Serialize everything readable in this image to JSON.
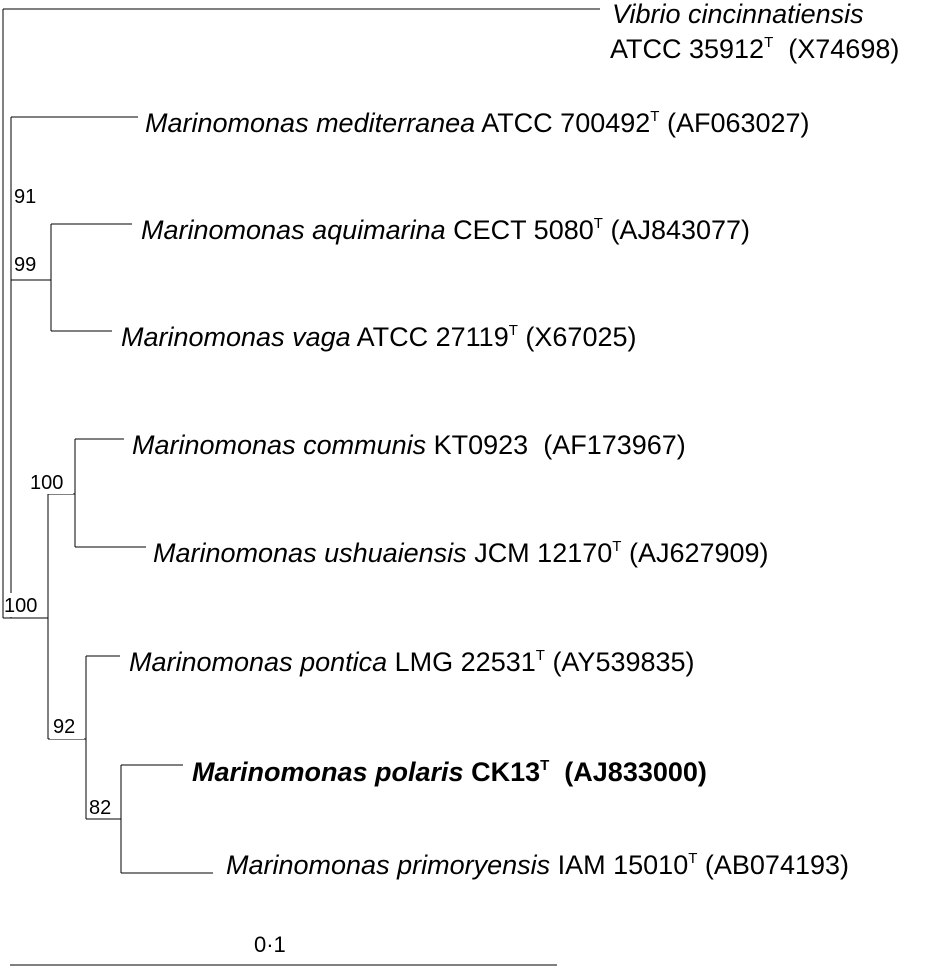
{
  "taxa": [
    {
      "id": "vibrio",
      "species": "Vibrio cincinnatiensis",
      "strain": "ATCC 35912",
      "type_strain": true,
      "accession": "(X74698)"
    },
    {
      "id": "mediterranea",
      "species": "Marinomonas mediterranea",
      "strain": "ATCC 700492",
      "type_strain": true,
      "accession": "(AF063027)"
    },
    {
      "id": "aquimarina",
      "species": "Marinomonas aquimarina",
      "strain": "CECT 5080",
      "type_strain": true,
      "accession": "(AJ843077)"
    },
    {
      "id": "vaga",
      "species": "Marinomonas vaga",
      "strain": "ATCC 27119",
      "type_strain": true,
      "accession": "(X67025)"
    },
    {
      "id": "communis",
      "species": "Marinomonas communis",
      "strain": "KT0923",
      "type_strain": false,
      "accession": "(AF173967)"
    },
    {
      "id": "ushuaiensis",
      "species": "Marinomonas ushuaiensis",
      "strain": "JCM 12170",
      "type_strain": true,
      "accession": "(AJ627909)"
    },
    {
      "id": "pontica",
      "species": "Marinomonas pontica",
      "strain": "LMG 22531",
      "type_strain": true,
      "accession": "(AY539835)"
    },
    {
      "id": "polaris",
      "species": "Marinomonas polaris",
      "strain": "CK13",
      "type_strain": true,
      "accession": "(AJ833000)",
      "highlight": true
    },
    {
      "id": "primoryensis",
      "species": "Marinomonas primoryensis",
      "strain": "IAM 15010",
      "type_strain": true,
      "accession": "(AB074193)"
    }
  ],
  "type_mark": "T",
  "bootstrap": {
    "mediterranea_clade": "91",
    "aquimarina_vaga": "99",
    "communis_ushuaiensis": "100",
    "marinomonas_lower_clade": "100",
    "pontica_clade": "92",
    "polaris_primoryensis": "82"
  },
  "scale_bar": {
    "label": "0·1",
    "value": 0.1
  }
}
